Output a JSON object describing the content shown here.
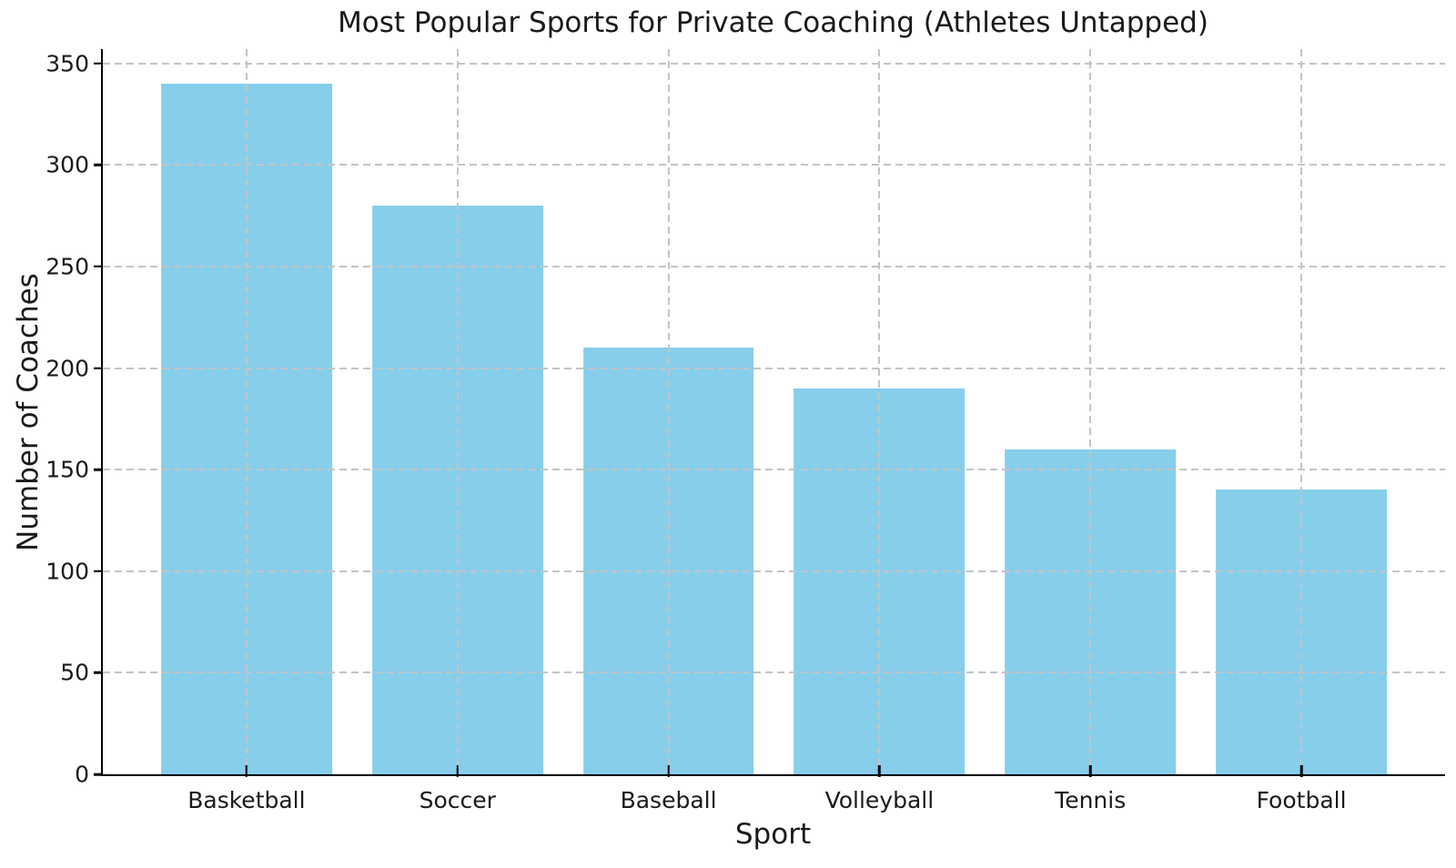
{
  "chart_data": {
    "type": "bar",
    "title": "Most Popular Sports for Private Coaching (Athletes Untapped)",
    "xlabel": "Sport",
    "ylabel": "Number of Coaches",
    "categories": [
      "Basketball",
      "Soccer",
      "Baseball",
      "Volleyball",
      "Tennis",
      "Football"
    ],
    "values": [
      340,
      280,
      210,
      190,
      160,
      140
    ],
    "yticks": [
      0,
      50,
      100,
      150,
      200,
      250,
      300,
      350
    ],
    "ylim": [
      0,
      357
    ],
    "bar_color": "#87CEEB",
    "grid": true,
    "grid_style": "dashed",
    "grid_color": "#c4c4c4",
    "axis_color": "#000000",
    "text_color": "#1a1a1a",
    "background": "#ffffff",
    "legend_position": "none"
  }
}
